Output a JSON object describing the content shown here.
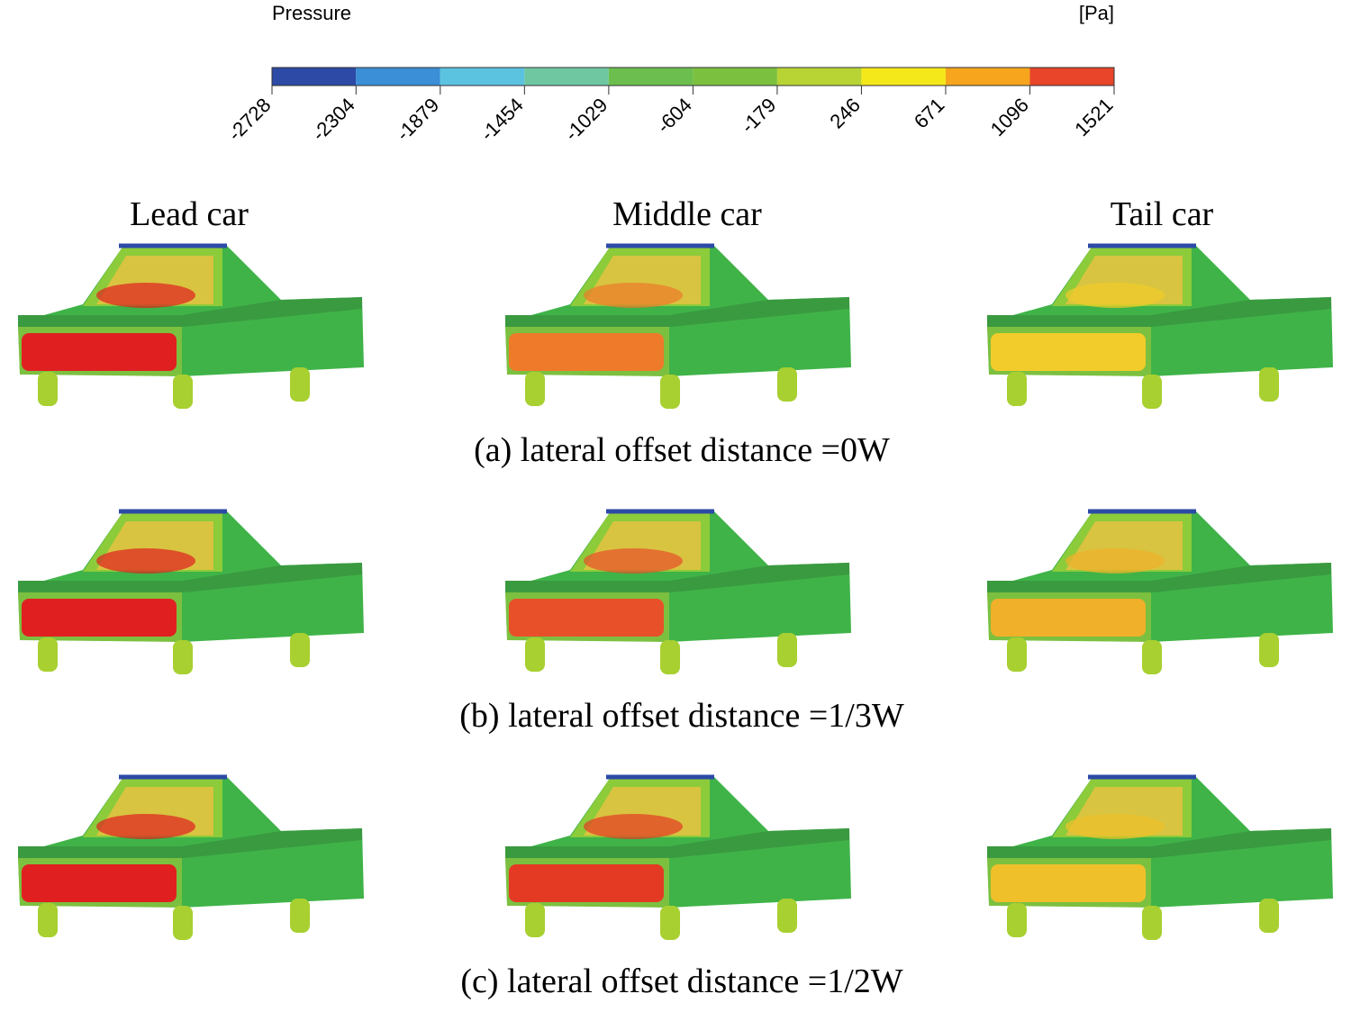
{
  "colorbar": {
    "title": "Pressure",
    "unit": "[Pa]",
    "ticks": [
      -2728,
      -2304,
      -1879,
      -1454,
      -1029,
      -604,
      -179,
      246,
      671,
      1096,
      1521
    ],
    "colors": [
      "#2c4aa6",
      "#3a8fd6",
      "#5bc3e0",
      "#6fc7a2",
      "#6cbf4e",
      "#7cc040",
      "#b8d434",
      "#f4e81a",
      "#f7a51c",
      "#e8452a"
    ]
  },
  "columns": [
    "Lead car",
    "Middle car",
    "Tail car"
  ],
  "rows": [
    {
      "caption": "(a) lateral offset distance  =0W",
      "fronts": [
        "#e02020",
        "#ee7a2a",
        "#f2cc2a"
      ]
    },
    {
      "caption": "(b) lateral offset distance  =1/3W",
      "fronts": [
        "#e02020",
        "#e8502a",
        "#f0b02a"
      ]
    },
    {
      "caption": "(c) lateral offset distance  =1/2W",
      "fronts": [
        "#e02020",
        "#e43a24",
        "#f0c02a"
      ]
    }
  ]
}
